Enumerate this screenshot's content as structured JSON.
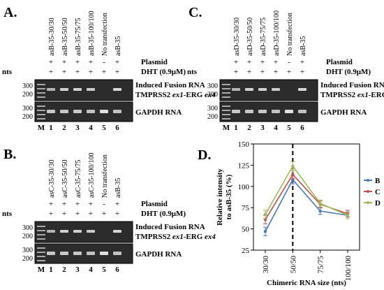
{
  "common": {
    "nts_label": "nts",
    "plasmid_label": "Plasmid",
    "dht_label": "DHT (0.9μM)",
    "fusion_label_1": "Induced Fusion RNA",
    "fusion_label_2a": "TMPRSS2 ",
    "fusion_label_2b": "ex1",
    "fusion_label_2c": "-ERG ",
    "fusion_label_2d": "ex4",
    "gapdh_label": "GAPDH RNA",
    "marker_label": "M",
    "ladder": [
      "300",
      "200",
      "300",
      "200"
    ],
    "lane_numbers": [
      "1",
      "2",
      "3",
      "4",
      "5",
      "6"
    ],
    "plasmid_signs": [
      "+",
      "+",
      "+",
      "+",
      "-",
      "+"
    ],
    "dht_signs": [
      "+",
      "+",
      "+",
      "+",
      "+",
      "+"
    ]
  },
  "panelA": {
    "letter": "A.",
    "lanes": [
      "asB-35-30/30",
      "asB-35-50/50",
      "asB-35-75/75",
      "asB-35-100/100",
      "No transfection",
      "asB-35"
    ],
    "ladder": [
      "300",
      "200",
      "300",
      "200"
    ]
  },
  "panelB": {
    "letter": "B.",
    "lanes": [
      "asC-35-30/30",
      "asC-35-50/50",
      "asC-35-75/75",
      "asC-35-100/100",
      "No transfection",
      "asB-35"
    ],
    "ladder": [
      "300",
      "200",
      "300",
      "200"
    ]
  },
  "panelC": {
    "letter": "C.",
    "lanes": [
      "asD-35-30/30",
      "asD-35-50/50",
      "asD-35-75/75",
      "asD-35-100/100",
      "No transfection",
      "asB-35"
    ],
    "ladder": [
      "300",
      "200",
      "300",
      "200"
    ]
  },
  "panelD": {
    "letter": "D.",
    "ylabel_1": "Relative intensity",
    "ylabel_2": "to asB-35 (%)",
    "xlabel": "Chimeric RNA size (nts)"
  },
  "chart_data": {
    "type": "line",
    "categories": [
      "30/30",
      "50/50",
      "75/75",
      "100/100"
    ],
    "series": [
      {
        "name": "B",
        "values": [
          47,
          108,
          71,
          66
        ],
        "errors": [
          5,
          5,
          4,
          4
        ],
        "color": "#4a7ab8"
      },
      {
        "name": "C",
        "values": [
          61,
          114,
          79,
          68
        ],
        "errors": [
          5,
          5,
          4,
          4
        ],
        "color": "#c0504d"
      },
      {
        "name": "D",
        "values": [
          67,
          124,
          80,
          66
        ],
        "errors": [
          5,
          5,
          4,
          4
        ],
        "color": "#9bbb59"
      }
    ],
    "yticks": [
      "25",
      "50",
      "75",
      "100",
      "125",
      "150"
    ],
    "ylim": [
      25,
      150
    ],
    "legend_position": "right",
    "dashed_marker_category": "50/50"
  }
}
